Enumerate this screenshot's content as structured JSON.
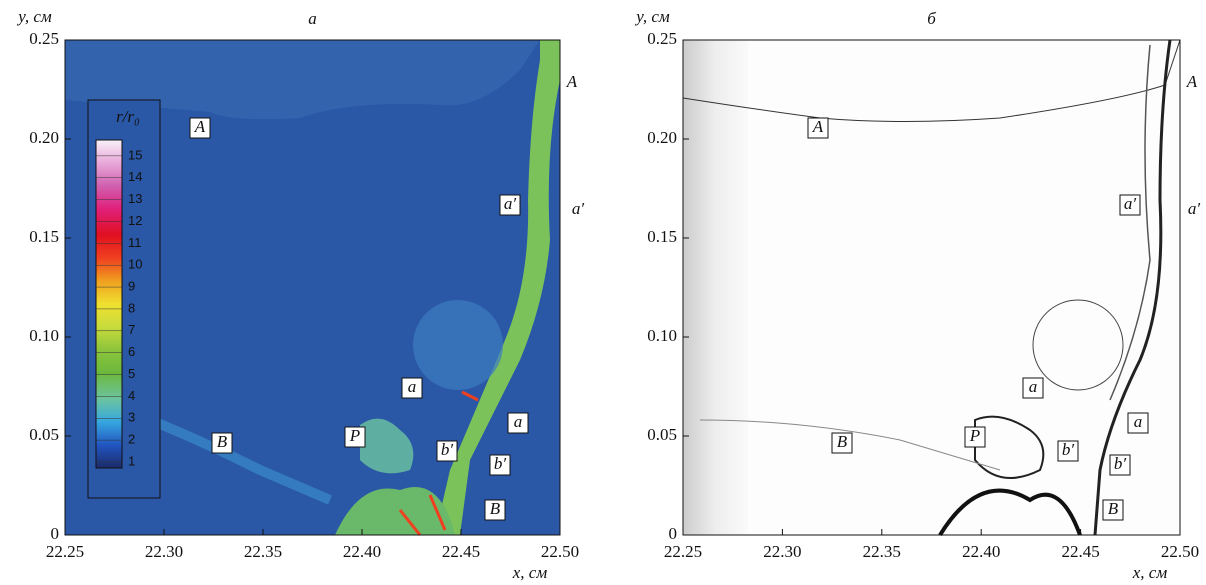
{
  "panels": [
    {
      "title": "а",
      "y_label": "y, см",
      "x_label": "x, см",
      "xticks": [
        "22.25",
        "22.30",
        "22.35",
        "22.40",
        "22.45",
        "22.50"
      ],
      "yticks": [
        "0",
        "0.05",
        "0.10",
        "0.15",
        "0.20",
        "0.25"
      ],
      "annotations": [
        "A",
        "A",
        "a′",
        "a′",
        "a",
        "a",
        "P",
        "b′",
        "b′",
        "B",
        "B"
      ],
      "colorbar": {
        "title": "r/r₀",
        "ticks": [
          "1",
          "2",
          "3",
          "4",
          "5",
          "6",
          "7",
          "8",
          "9",
          "10",
          "11",
          "12",
          "13",
          "14",
          "15"
        ]
      }
    },
    {
      "title": "б",
      "y_label": "y, см",
      "x_label": "x, см",
      "xticks": [
        "22.25",
        "22.30",
        "22.35",
        "22.40",
        "22.45",
        "22.50"
      ],
      "yticks": [
        "0",
        "0.05",
        "0.10",
        "0.15",
        "0.20",
        "0.25"
      ],
      "annotations": [
        "A",
        "A",
        "a′",
        "a′",
        "a",
        "a",
        "P",
        "b′",
        "b′",
        "B",
        "B"
      ]
    }
  ]
}
